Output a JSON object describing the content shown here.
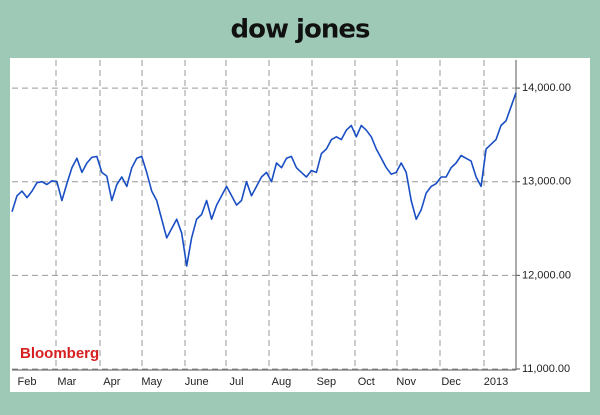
{
  "chart_data": {
    "type": "line",
    "title": "dow jones",
    "source": "Bloomberg",
    "categories": [
      null,
      null,
      null,
      "Feb",
      null,
      null,
      null,
      null,
      null,
      null,
      null,
      "Mar",
      null,
      null,
      null,
      null,
      null,
      null,
      null,
      null,
      "Apr",
      null,
      null,
      null,
      null,
      null,
      null,
      null,
      "May",
      null,
      null,
      null,
      null,
      null,
      null,
      null,
      null,
      "June",
      null,
      null,
      null,
      null,
      null,
      null,
      null,
      "Jul",
      null,
      null,
      null,
      null,
      null,
      null,
      null,
      null,
      "Aug",
      null,
      null,
      null,
      null,
      null,
      null,
      null,
      null,
      "Sep",
      null,
      null,
      null,
      null,
      null,
      null,
      null,
      "Oct",
      null,
      null,
      null,
      null,
      null,
      null,
      null,
      "Nov",
      null,
      null,
      null,
      null,
      null,
      null,
      null,
      null,
      "Dec",
      null,
      null,
      null,
      null,
      null,
      null,
      null,
      null,
      "2013",
      null,
      null,
      null,
      null
    ],
    "series": [
      {
        "name": "Dow Jones",
        "color": "#1a4fc4",
        "values": [
          12680,
          12850,
          12900,
          12830,
          12900,
          12990,
          13000,
          12970,
          13010,
          13000,
          12800,
          12980,
          13150,
          13250,
          13100,
          13200,
          13260,
          13270,
          13100,
          13060,
          12800,
          12970,
          13050,
          12950,
          13150,
          13250,
          13270,
          13100,
          12900,
          12800,
          12600,
          12400,
          12500,
          12600,
          12450,
          12100,
          12400,
          12600,
          12650,
          12800,
          12600,
          12750,
          12850,
          12950,
          12850,
          12750,
          12800,
          13000,
          12850,
          12950,
          13050,
          13100,
          13000,
          13200,
          13150,
          13250,
          13270,
          13150,
          13100,
          13050,
          13120,
          13100,
          13300,
          13350,
          13450,
          13480,
          13450,
          13550,
          13600,
          13480,
          13600,
          13550,
          13480,
          13350,
          13250,
          13150,
          13080,
          13100,
          13200,
          13100,
          12800,
          12600,
          12700,
          12880,
          12950,
          12980,
          13050,
          13050,
          13150,
          13200,
          13280,
          13250,
          13220,
          13050,
          12950,
          13350,
          13400,
          13450,
          13600,
          13650,
          13800,
          13950
        ]
      }
    ],
    "ylim": [
      11000,
      14300
    ],
    "yticks": [
      {
        "value": 11000,
        "label": "11,000.00"
      },
      {
        "value": 12000,
        "label": "12,000.00"
      },
      {
        "value": 13000,
        "label": "13,000.00"
      },
      {
        "value": 14000,
        "label": "14,000.00"
      }
    ],
    "grid": true
  }
}
